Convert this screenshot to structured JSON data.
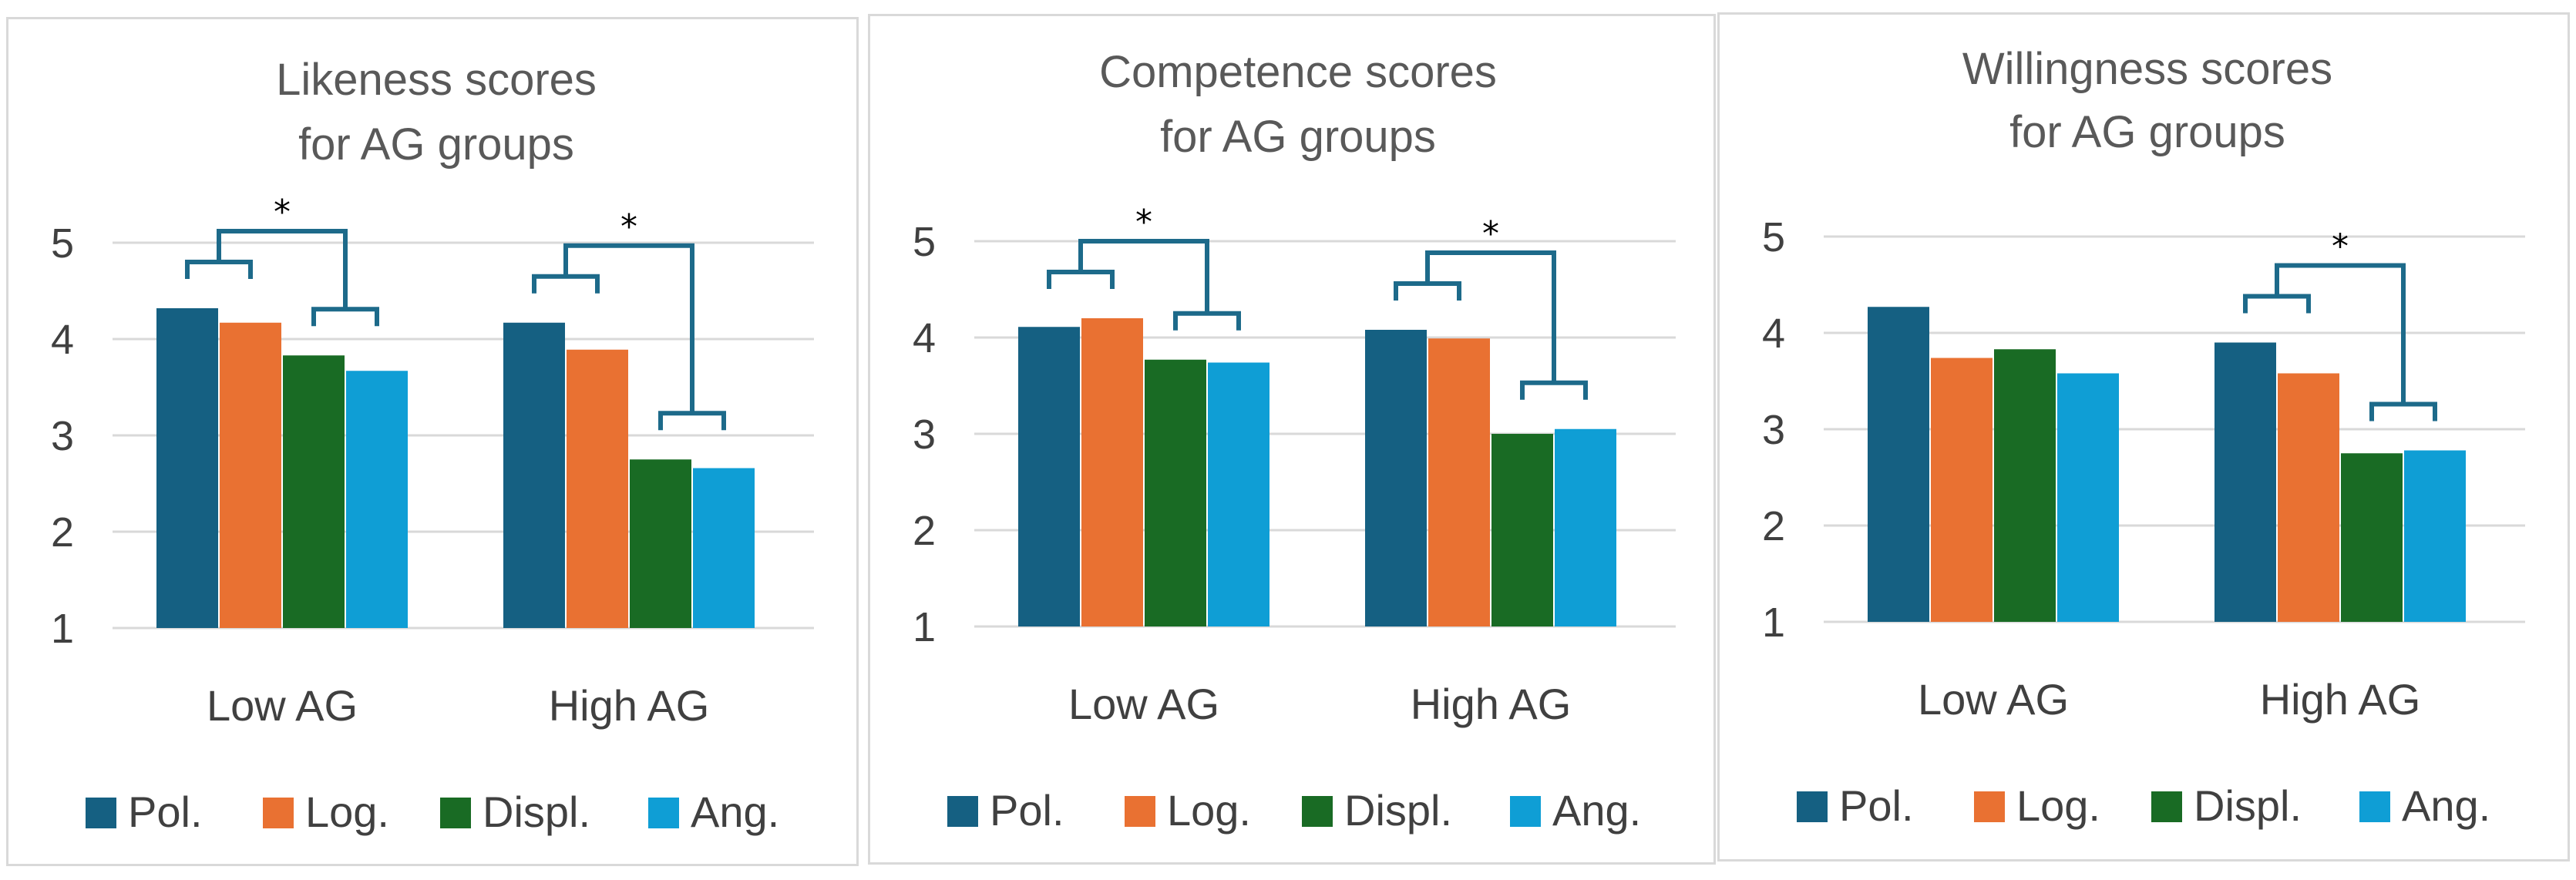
{
  "chart_data": [
    {
      "type": "bar",
      "title": [
        "Likeness scores",
        "for AG groups"
      ],
      "categories": [
        "Low AG",
        "High AG"
      ],
      "series": [
        {
          "name": "Pol.",
          "values": [
            4.32,
            4.17
          ]
        },
        {
          "name": "Log.",
          "values": [
            4.17,
            3.89
          ]
        },
        {
          "name": "Displ.",
          "values": [
            3.83,
            2.75
          ]
        },
        {
          "name": "Ang.",
          "values": [
            3.67,
            2.66
          ]
        }
      ],
      "ylim": [
        1,
        5
      ],
      "yticks": [
        1,
        2,
        3,
        4,
        5
      ],
      "grid": true,
      "legend": "bottom",
      "significance": [
        {
          "category": 0,
          "left_group": [
            0,
            1
          ],
          "right_group": [
            2,
            3
          ],
          "label": "*"
        },
        {
          "category": 1,
          "left_group": [
            0,
            1
          ],
          "right_group": [
            2,
            3
          ],
          "label": "*"
        }
      ]
    },
    {
      "type": "bar",
      "title": [
        "Competence scores",
        "for AG groups"
      ],
      "categories": [
        "Low AG",
        "High AG"
      ],
      "series": [
        {
          "name": "Pol.",
          "values": [
            4.11,
            4.08
          ]
        },
        {
          "name": "Log.",
          "values": [
            4.2,
            3.99
          ]
        },
        {
          "name": "Displ.",
          "values": [
            3.77,
            3.0
          ]
        },
        {
          "name": "Ang.",
          "values": [
            3.74,
            3.05
          ]
        }
      ],
      "ylim": [
        1,
        5
      ],
      "yticks": [
        1,
        2,
        3,
        4,
        5
      ],
      "grid": true,
      "legend": "bottom",
      "significance": [
        {
          "category": 0,
          "left_group": [
            0,
            1
          ],
          "right_group": [
            2,
            3
          ],
          "label": "*"
        },
        {
          "category": 1,
          "left_group": [
            0,
            1
          ],
          "right_group": [
            2,
            3
          ],
          "label": "*"
        }
      ]
    },
    {
      "type": "bar",
      "title": [
        "Willingness scores",
        "for AG groups"
      ],
      "categories": [
        "Low AG",
        "High AG"
      ],
      "series": [
        {
          "name": "Pol.",
          "values": [
            4.27,
            3.9
          ]
        },
        {
          "name": "Log.",
          "values": [
            3.74,
            3.58
          ]
        },
        {
          "name": "Displ.",
          "values": [
            3.83,
            2.75
          ]
        },
        {
          "name": "Ang.",
          "values": [
            3.58,
            2.78
          ]
        }
      ],
      "ylim": [
        1,
        5
      ],
      "yticks": [
        1,
        2,
        3,
        4,
        5
      ],
      "grid": true,
      "legend": "bottom",
      "significance": [
        {
          "category": 1,
          "left_group": [
            0,
            1
          ],
          "right_group": [
            2,
            3
          ],
          "label": "*"
        }
      ]
    }
  ],
  "colors": {
    "series": [
      "#156082",
      "#e97132",
      "#196b24",
      "#0f9ed5"
    ],
    "bracket": "#1d6a8a",
    "grid": "#d9d9d9",
    "text": "#404040",
    "title": "#595959"
  }
}
